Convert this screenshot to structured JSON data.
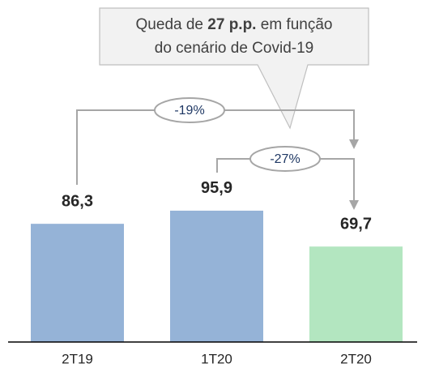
{
  "chart_data": {
    "type": "bar",
    "categories": [
      "2T19",
      "1T20",
      "2T20"
    ],
    "values": [
      86.3,
      95.9,
      69.7
    ],
    "value_labels": [
      "86,3",
      "95,9",
      "69,7"
    ],
    "colors": [
      "#95b3d7",
      "#95b3d7",
      "#b3e6c0"
    ],
    "ylim": [
      0,
      100
    ],
    "callout": {
      "line1": [
        "Queda de ",
        "27 p.p.",
        " em função"
      ],
      "line2": "do cenário de Covid-19"
    },
    "comparisons": [
      "-19%",
      "-27%"
    ]
  }
}
